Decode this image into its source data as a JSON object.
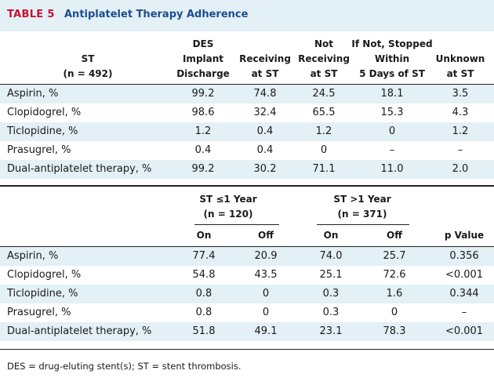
{
  "title": {
    "label": "TABLE 5",
    "text": "Antiplatelet Therapy Adherence"
  },
  "table1": {
    "row_header": [
      "ST",
      "(n = 492)"
    ],
    "columns": [
      [
        "DES",
        "Implant",
        "Discharge"
      ],
      [
        "Receiving",
        "at ST"
      ],
      [
        "Not",
        "Receiving",
        "at ST"
      ],
      [
        "If Not, Stopped",
        "Within",
        "5 Days of ST"
      ],
      [
        "Unknown",
        "at ST"
      ]
    ],
    "rows": [
      {
        "label": "Aspirin, %",
        "values": [
          "99.2",
          "74.8",
          "24.5",
          "18.1",
          "3.5"
        ]
      },
      {
        "label": "Clopidogrel, %",
        "values": [
          "98.6",
          "32.4",
          "65.5",
          "15.3",
          "4.3"
        ]
      },
      {
        "label": "Ticlopidine, %",
        "values": [
          "1.2",
          "0.4",
          "1.2",
          "0",
          "1.2"
        ]
      },
      {
        "label": "Prasugrel, %",
        "values": [
          "0.4",
          "0.4",
          "0",
          "–",
          "–"
        ]
      },
      {
        "label": "Dual-antiplatelet therapy, %",
        "values": [
          "99.2",
          "30.2",
          "71.1",
          "11.0",
          "2.0"
        ]
      }
    ]
  },
  "table2": {
    "groups": [
      [
        "ST ≤1 Year",
        "(n = 120)"
      ],
      [
        "ST >1 Year",
        "(n = 371)"
      ]
    ],
    "columns": [
      "On",
      "Off",
      "On",
      "Off",
      "p Value"
    ],
    "rows": [
      {
        "label": "Aspirin, %",
        "values": [
          "77.4",
          "20.9",
          "74.0",
          "25.7",
          "0.356"
        ]
      },
      {
        "label": "Clopidogrel, %",
        "values": [
          "54.8",
          "43.5",
          "25.1",
          "72.6",
          "<0.001"
        ]
      },
      {
        "label": "Ticlopidine, %",
        "values": [
          "0.8",
          "0",
          "0.3",
          "1.6",
          "0.344"
        ]
      },
      {
        "label": "Prasugrel, %",
        "values": [
          "0.8",
          "0",
          "0.3",
          "0",
          "–"
        ]
      },
      {
        "label": "Dual-antiplatelet therapy, %",
        "values": [
          "51.8",
          "49.1",
          "23.1",
          "78.3",
          "<0.001"
        ]
      }
    ]
  },
  "footnote": "DES = drug-eluting stent(s); ST = stent thrombosis."
}
